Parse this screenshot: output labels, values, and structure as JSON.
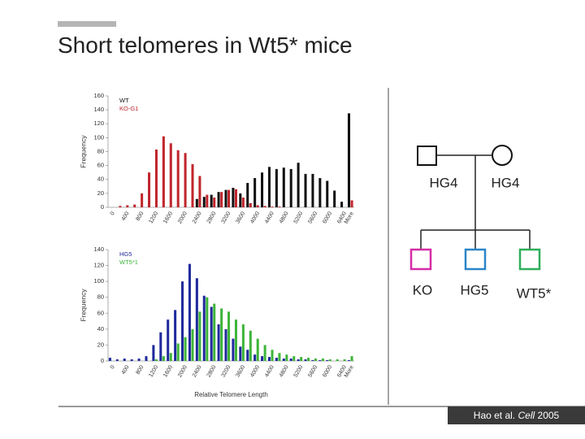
{
  "slide_title": "Short telomeres in Wt5* mice",
  "citation": {
    "authors": "Hao et al.",
    "journal": "Cell",
    "year": "2005"
  },
  "pedigree": {
    "parents": [
      "HG4",
      "HG4"
    ],
    "children": [
      {
        "label": "KO",
        "color": "#d62ca6"
      },
      {
        "label": "HG5",
        "color": "#2a86c8"
      },
      {
        "label": "WT5*",
        "color": "#2eae5a"
      }
    ]
  },
  "chart_data": [
    {
      "type": "bar",
      "ylabel": "Frequency",
      "legend": "upper left",
      "categories": [
        0,
        null,
        400,
        null,
        800,
        null,
        1200,
        null,
        1600,
        null,
        2000,
        null,
        2400,
        null,
        2800,
        null,
        3200,
        null,
        3600,
        null,
        4000,
        null,
        4400,
        null,
        4800,
        null,
        5200,
        null,
        5600,
        null,
        6000,
        null,
        6400,
        "More"
      ],
      "ylim": [
        0,
        160
      ],
      "yticks": [
        0,
        20,
        40,
        60,
        80,
        100,
        120,
        140,
        160
      ],
      "series": [
        {
          "name": "WT",
          "color": "#111111",
          "values": [
            0,
            0,
            0,
            0,
            0,
            0,
            0,
            0,
            0,
            0,
            0,
            0,
            12,
            15,
            18,
            22,
            25,
            28,
            20,
            35,
            42,
            50,
            58,
            55,
            57,
            55,
            64,
            48,
            48,
            42,
            38,
            24,
            8,
            135
          ]
        },
        {
          "name": "KO-G1",
          "color": "#c0262d",
          "values": [
            0,
            2,
            3,
            4,
            20,
            50,
            83,
            102,
            92,
            82,
            78,
            62,
            45,
            18,
            14,
            22,
            25,
            26,
            14,
            6,
            3,
            2,
            1,
            1,
            0,
            0,
            0,
            0,
            0,
            0,
            0,
            0,
            0,
            10
          ]
        }
      ]
    },
    {
      "type": "bar",
      "ylabel": "Frequency",
      "xlabel": "Relative Telomere Length",
      "legend": "upper left",
      "categories": [
        0,
        null,
        400,
        null,
        800,
        null,
        1200,
        null,
        1600,
        null,
        2000,
        null,
        2400,
        null,
        2800,
        null,
        3200,
        null,
        3600,
        null,
        4000,
        null,
        4400,
        null,
        4800,
        null,
        5200,
        null,
        5600,
        null,
        6000,
        null,
        6400,
        "More"
      ],
      "ylim": [
        0,
        140
      ],
      "yticks": [
        0,
        20,
        40,
        60,
        80,
        100,
        120,
        140
      ],
      "series": [
        {
          "name": "HG5",
          "color": "#1f2a9c",
          "values": [
            4,
            2,
            3,
            2,
            3,
            6,
            20,
            36,
            52,
            64,
            100,
            122,
            104,
            82,
            68,
            46,
            40,
            28,
            18,
            14,
            8,
            6,
            5,
            4,
            3,
            3,
            2,
            2,
            1,
            1,
            1,
            0,
            0,
            1
          ]
        },
        {
          "name": "WT5*1",
          "color": "#3db53a",
          "values": [
            0,
            0,
            0,
            0,
            0,
            0,
            2,
            6,
            10,
            22,
            30,
            40,
            62,
            80,
            72,
            66,
            62,
            52,
            46,
            38,
            28,
            20,
            14,
            10,
            8,
            6,
            5,
            4,
            3,
            3,
            2,
            2,
            2,
            6
          ]
        }
      ]
    }
  ]
}
